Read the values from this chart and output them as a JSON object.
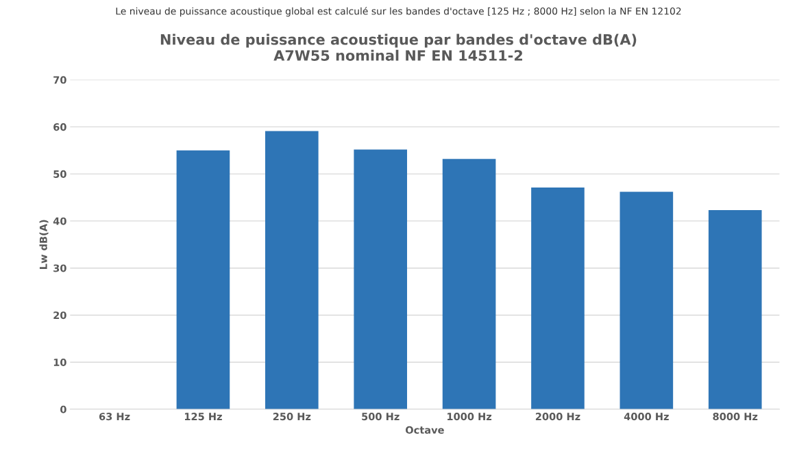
{
  "chart_data": {
    "type": "bar",
    "title": "Niveau de puissance acoustique par bandes d'octave dB(A)\nA7W55 nominal NF EN 14511-2",
    "xlabel": "Octave",
    "ylabel": "Lw dB(A)",
    "annotations": [
      "Le niveau de puissance acoustique global est calculé sur les bandes d'octave [125 Hz ; 8000 Hz] selon la NF EN 12102"
    ],
    "categories": [
      "63 Hz",
      "125 Hz",
      "250 Hz",
      "500 Hz",
      "1000 Hz",
      "2000 Hz",
      "4000 Hz",
      "8000 Hz"
    ],
    "values": [
      null,
      55.0,
      59.1,
      55.2,
      53.2,
      47.1,
      46.2,
      42.3
    ],
    "color": "#2e75b6",
    "ylim": [
      0,
      70
    ],
    "yticks": [
      0,
      10,
      20,
      30,
      40,
      50,
      60,
      70
    ],
    "grid": "y"
  }
}
